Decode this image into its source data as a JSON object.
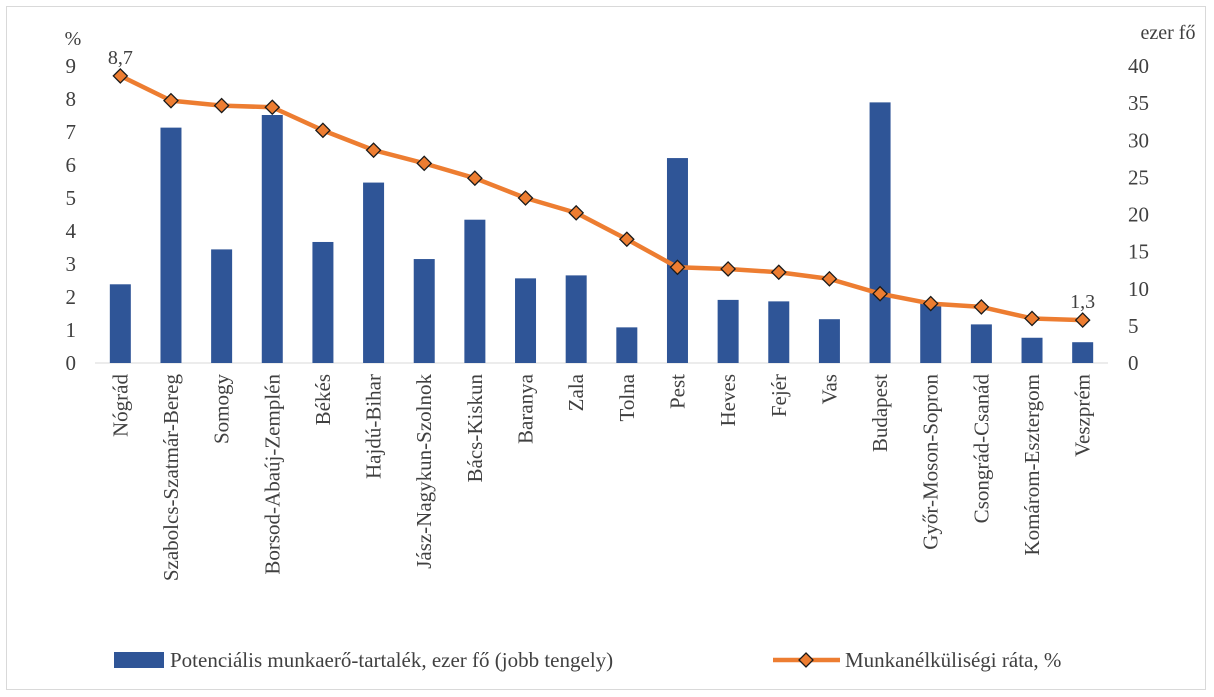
{
  "chart_data": {
    "type": "bar+line",
    "categories": [
      "Nógrád",
      "Szabolcs-Szatmár-Bereg",
      "Somogy",
      "Borsod-Abaúj-Zemplén",
      "Békés",
      "Hajdú-Bihar",
      "Jász-Nagykun-Szolnok",
      "Bács-Kiskun",
      "Baranya",
      "Zala",
      "Tolna",
      "Pest",
      "Heves",
      "Fejér",
      "Vas",
      "Budapest",
      "Győr-Moson-Sopron",
      "Csongrád-Csanád",
      "Komárom-Esztergom",
      "Veszprém"
    ],
    "left_axis": {
      "unit": "%",
      "ylim": [
        0,
        9
      ],
      "ticks": [
        "0",
        "1",
        "2",
        "3",
        "4",
        "5",
        "6",
        "7",
        "8",
        "9"
      ]
    },
    "right_axis": {
      "unit": "ezer fő",
      "ylim": [
        0,
        40
      ],
      "ticks": [
        "0",
        "5",
        "10",
        "15",
        "20",
        "25",
        "30",
        "35",
        "40"
      ]
    },
    "series": [
      {
        "name": "Potenciális munkaerő-tartalék, ezer fő (jobb tengely)",
        "kind": "bar",
        "axis": "right",
        "color": "#2f5597",
        "values": [
          10.6,
          31.7,
          15.3,
          33.4,
          16.3,
          24.3,
          14.0,
          19.3,
          11.4,
          11.8,
          4.8,
          27.6,
          8.5,
          8.3,
          5.9,
          35.1,
          8.2,
          5.2,
          3.4,
          2.8
        ]
      },
      {
        "name": "Munkanélküliségi ráta, %",
        "kind": "line",
        "axis": "left",
        "color": "#ed7d31",
        "marker": "diamond",
        "marker_color": "#ed7d31",
        "values": [
          8.7,
          7.95,
          7.8,
          7.75,
          7.05,
          6.45,
          6.05,
          5.6,
          5.0,
          4.55,
          3.75,
          2.9,
          2.85,
          2.75,
          2.55,
          2.1,
          1.8,
          1.7,
          1.35,
          1.3
        ]
      }
    ],
    "data_labels": [
      {
        "series": 1,
        "index": 0,
        "text": "8,7"
      },
      {
        "series": 1,
        "index": 19,
        "text": "1,3"
      }
    ],
    "legend": {
      "position": "bottom"
    }
  }
}
